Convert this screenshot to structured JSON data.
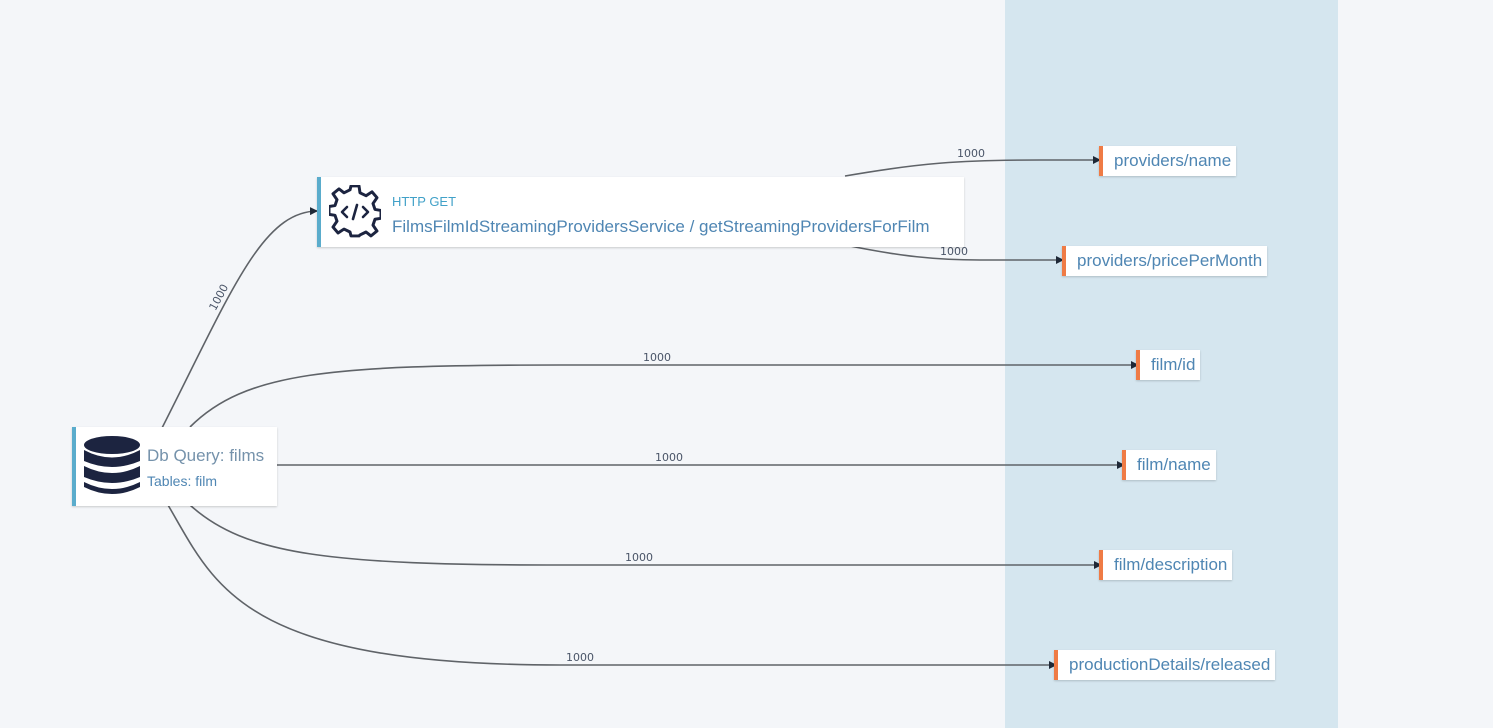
{
  "colors": {
    "background": "#f4f6f9",
    "output_band": "#d5e6ef",
    "source_accent": "#5aaccc",
    "output_accent": "#ef7b45",
    "edge": "#5f6368",
    "icon": "#1c2440",
    "text_blue": "#4f86b3",
    "http_kind": "#41a1c8"
  },
  "source_nodes": {
    "db_query": {
      "icon": "database-icon",
      "title": "Db Query: films",
      "subtitle": "Tables: film"
    },
    "http_service": {
      "icon": "gear-code-icon",
      "kind": "HTTP GET",
      "title": "FilmsFilmIdStreamingProvidersService / getStreamingProvidersForFilm"
    }
  },
  "output_fields": [
    {
      "label": "providers/name"
    },
    {
      "label": "providers/pricePerMonth"
    },
    {
      "label": "film/id"
    },
    {
      "label": "film/name"
    },
    {
      "label": "film/description"
    },
    {
      "label": "productionDetails/released"
    }
  ],
  "edges": [
    {
      "from": "Db Query: films",
      "to": "FilmsFilmIdStreamingProvidersService / getStreamingProvidersForFilm",
      "label": "1000"
    },
    {
      "from": "FilmsFilmIdStreamingProvidersService / getStreamingProvidersForFilm",
      "to": "providers/name",
      "label": "1000"
    },
    {
      "from": "FilmsFilmIdStreamingProvidersService / getStreamingProvidersForFilm",
      "to": "providers/pricePerMonth",
      "label": "1000"
    },
    {
      "from": "Db Query: films",
      "to": "film/id",
      "label": "1000"
    },
    {
      "from": "Db Query: films",
      "to": "film/name",
      "label": "1000"
    },
    {
      "from": "Db Query: films",
      "to": "film/description",
      "label": "1000"
    },
    {
      "from": "Db Query: films",
      "to": "productionDetails/released",
      "label": "1000"
    }
  ]
}
